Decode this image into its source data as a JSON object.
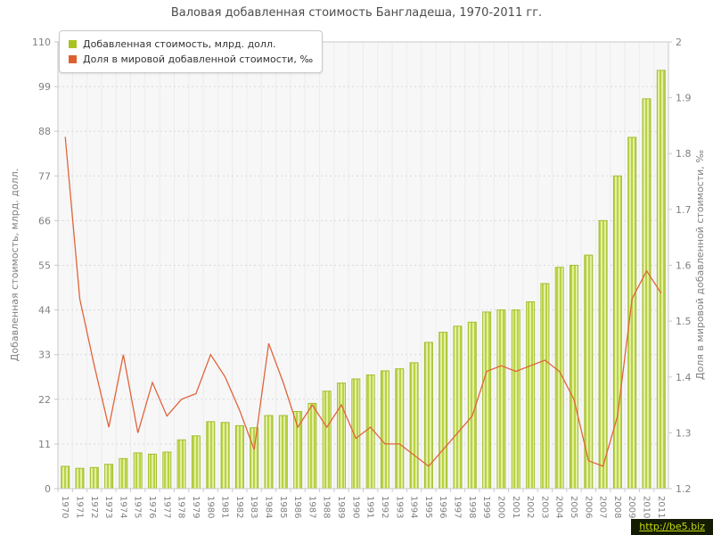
{
  "title": "Валовая добавленная стоимость Бангладеша, 1970-2011 гг.",
  "watermark": "http://be5.biz",
  "colors": {
    "bar_fill_light": "#e3efa2",
    "bar_fill_dark": "#b9d245",
    "bar_stroke": "#a2bf33",
    "line": "#e0643a",
    "grid_h": "#d9d9d9",
    "grid_v": "#ececec",
    "axis_line": "#c9c9c9",
    "axis_text": "#808080",
    "title_text": "#4c4c4c",
    "plot_bg": "#f7f7f7"
  },
  "chart_data": {
    "type": "bar+line",
    "title": "Валовая добавленная стоимость Бангладеша, 1970-2011 гг.",
    "grid": true,
    "legend_position": "top-left",
    "categories": [
      "1970",
      "1971",
      "1972",
      "1973",
      "1974",
      "1975",
      "1976",
      "1977",
      "1978",
      "1979",
      "1980",
      "1981",
      "1982",
      "1983",
      "1984",
      "1985",
      "1986",
      "1987",
      "1988",
      "1989",
      "1990",
      "1991",
      "1992",
      "1993",
      "1994",
      "1995",
      "1996",
      "1997",
      "1998",
      "1999",
      "2000",
      "2001",
      "2002",
      "2003",
      "2004",
      "2005",
      "2006",
      "2007",
      "2008",
      "2009",
      "2010",
      "2011"
    ],
    "series": [
      {
        "name": "Добавленная стоимость, млрд. долл.",
        "type": "bar",
        "axis": "left",
        "color": "#a8c421",
        "values": [
          5.5,
          5.0,
          5.2,
          6.0,
          7.4,
          8.8,
          8.5,
          9.0,
          12.0,
          13.0,
          16.5,
          16.3,
          15.5,
          15.0,
          18.0,
          18.0,
          19.0,
          21.0,
          24.0,
          26.0,
          27.0,
          28.0,
          29.0,
          29.5,
          31.0,
          36.0,
          38.5,
          40.0,
          41.0,
          43.5,
          44.0,
          44.0,
          46.0,
          50.5,
          54.5,
          55.0,
          57.5,
          66.0,
          77.0,
          86.5,
          96.0,
          103.0
        ]
      },
      {
        "name": "Доля в мировой добавленной стоимости, ‰",
        "type": "line",
        "axis": "right",
        "color": "#dd6030",
        "values": [
          1.83,
          1.54,
          1.42,
          1.31,
          1.44,
          1.3,
          1.39,
          1.33,
          1.36,
          1.37,
          1.44,
          1.4,
          1.34,
          1.27,
          1.46,
          1.39,
          1.31,
          1.35,
          1.31,
          1.35,
          1.29,
          1.31,
          1.28,
          1.28,
          1.26,
          1.24,
          1.27,
          1.3,
          1.33,
          1.41,
          1.42,
          1.41,
          1.42,
          1.43,
          1.41,
          1.36,
          1.25,
          1.24,
          1.33,
          1.54,
          1.59,
          1.55
        ]
      }
    ],
    "left_axis": {
      "label": "Добавленная стоимость, млрд. долл.",
      "min": 0,
      "max": 110,
      "ticks": [
        0,
        11,
        22,
        33,
        44,
        55,
        66,
        77,
        88,
        99,
        110
      ]
    },
    "right_axis": {
      "label": "Доля в мировой добавленной стоимости, ‰",
      "min": 1.2,
      "max": 2,
      "ticks": [
        1.2,
        1.3,
        1.4,
        1.5,
        1.6,
        1.7,
        1.8,
        1.9,
        2
      ]
    }
  }
}
